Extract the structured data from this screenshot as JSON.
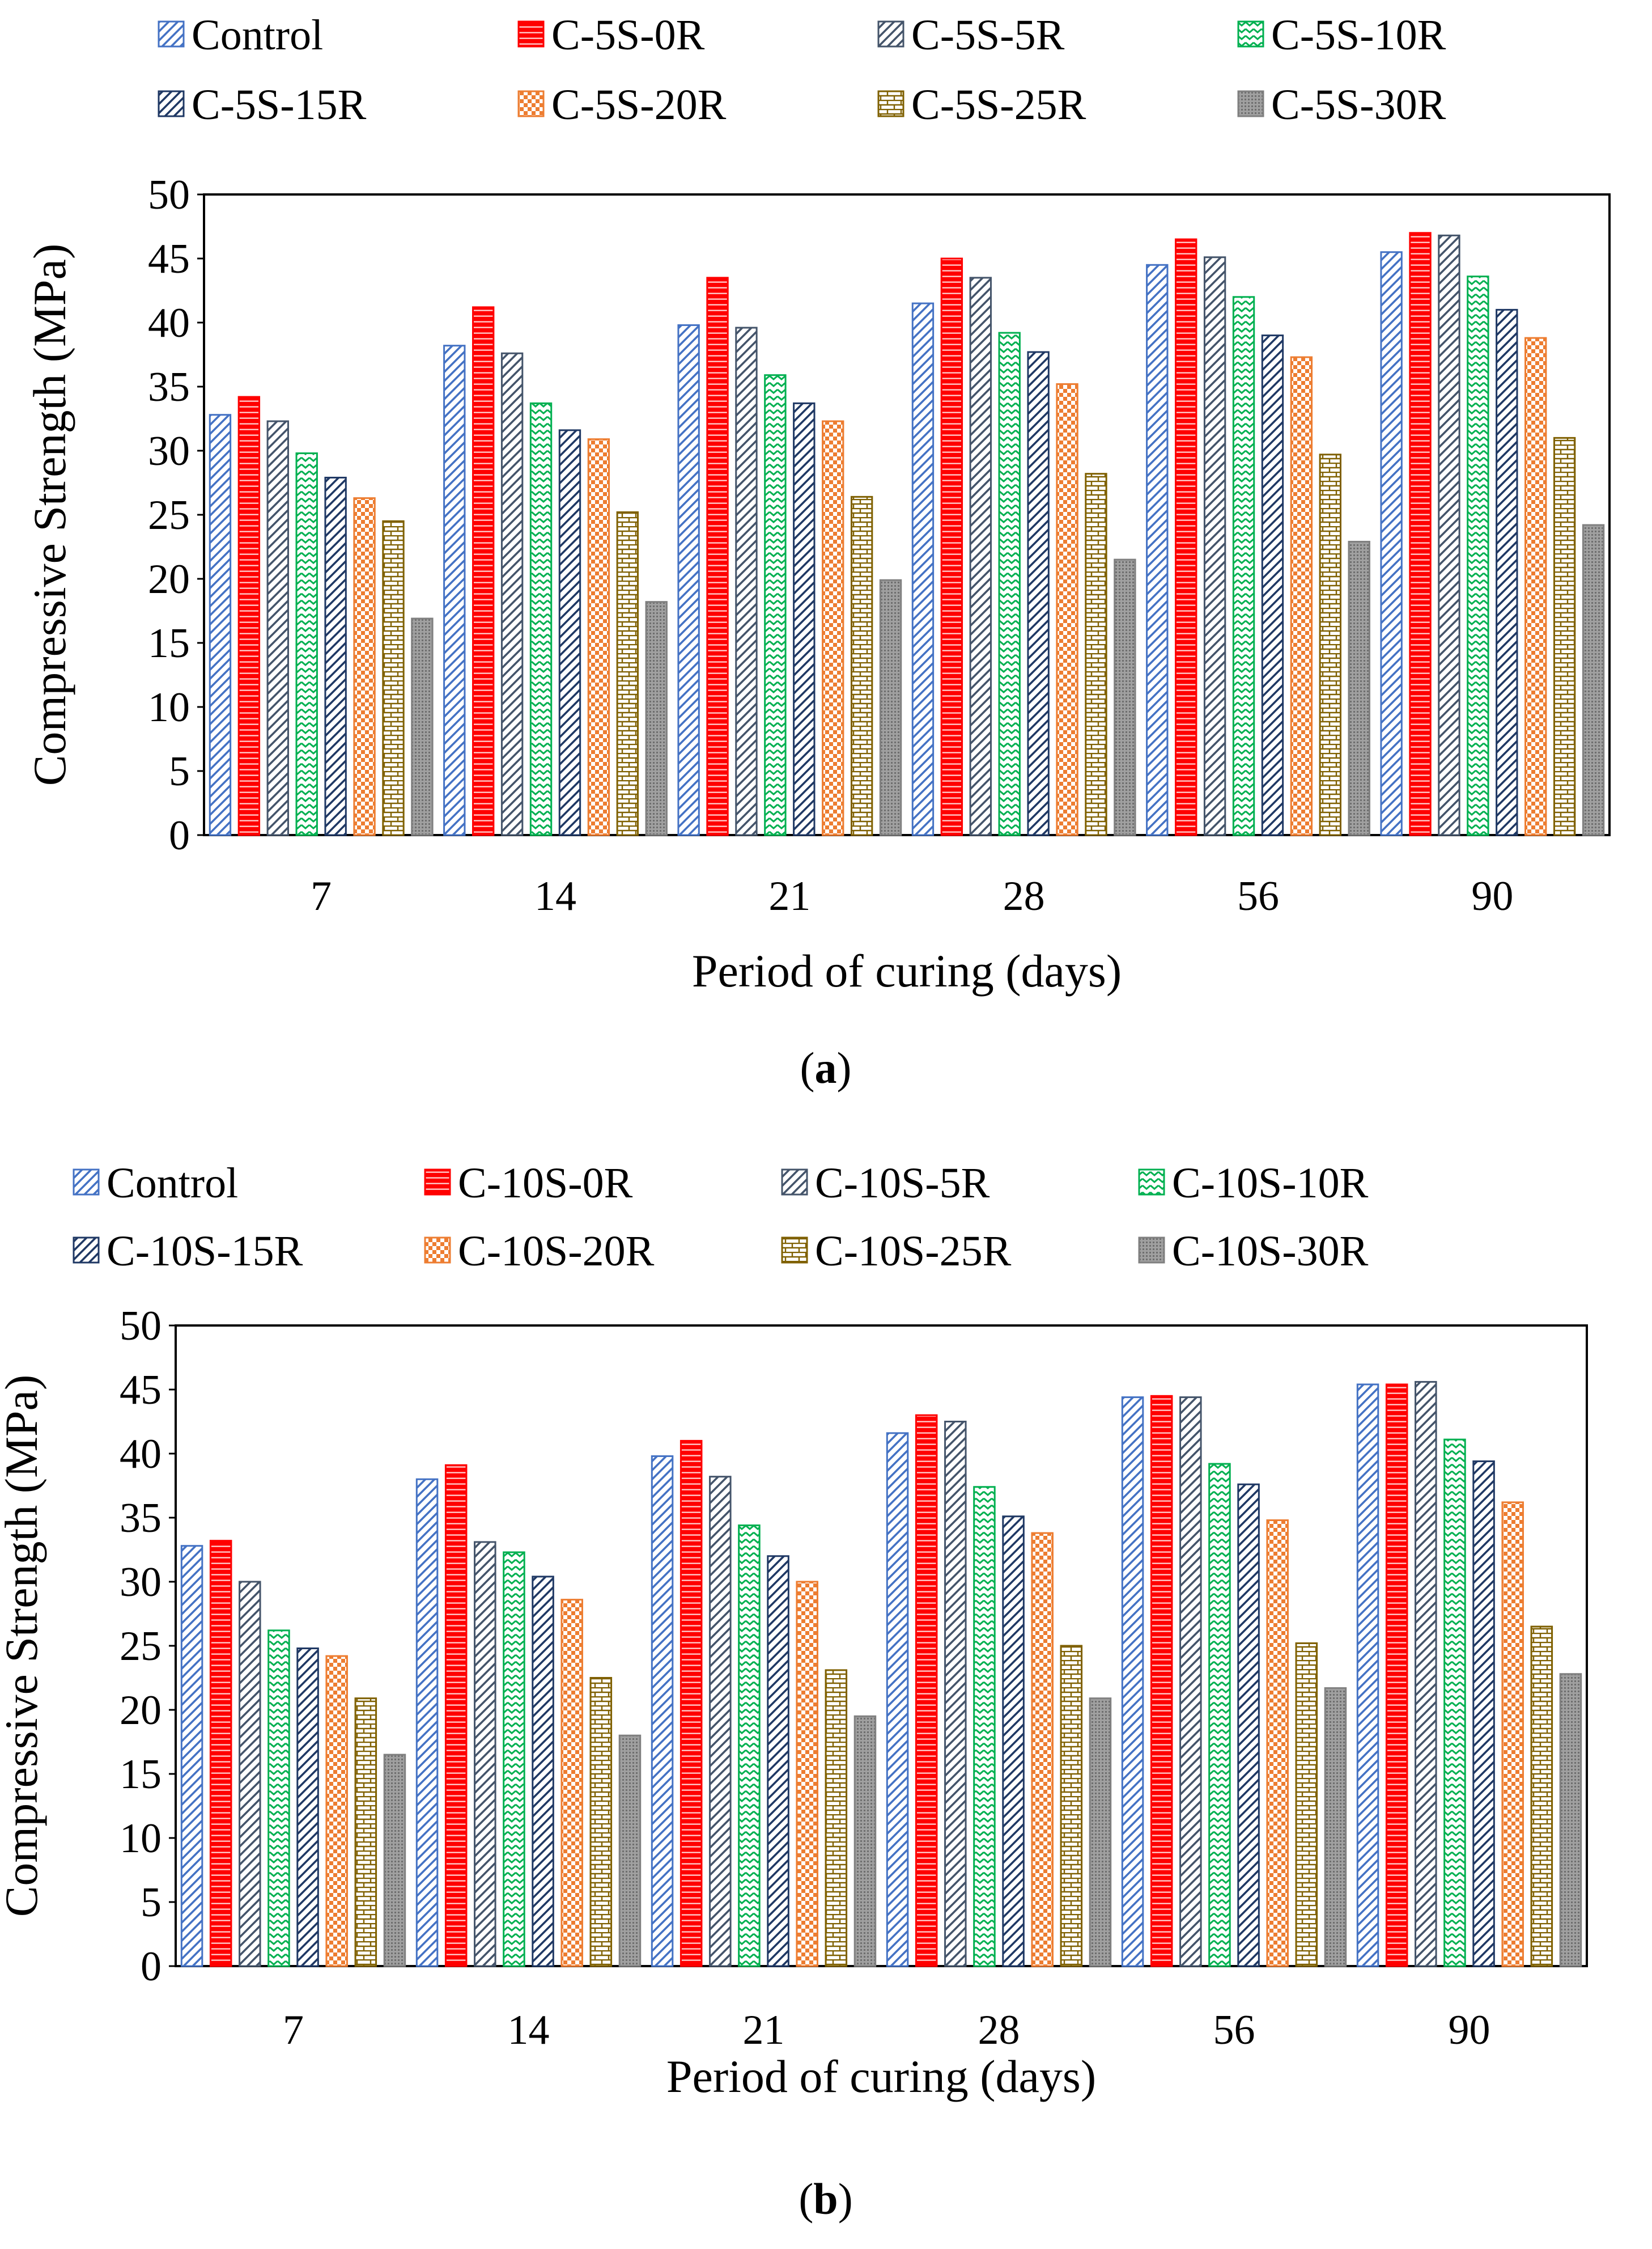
{
  "chart_data": [
    {
      "type": "bar",
      "panel_label": "(a)",
      "xlabel": "Period of curing (days)",
      "ylabel": "Compressive Strength (MPa)",
      "ylim": [
        0,
        50
      ],
      "yticks": [
        "0",
        "5",
        "10",
        "15",
        "20",
        "25",
        "30",
        "35",
        "40",
        "45",
        "50"
      ],
      "legend_position": "top",
      "categories": [
        "7",
        "14",
        "21",
        "28",
        "56",
        "90"
      ],
      "series": [
        {
          "name": "Control",
          "values": [
            32.8,
            38.2,
            39.8,
            41.5,
            44.5,
            45.5
          ]
        },
        {
          "name": "C-5S-0R",
          "values": [
            34.2,
            41.2,
            43.5,
            45.0,
            46.5,
            47.0
          ]
        },
        {
          "name": "C-5S-5R",
          "values": [
            32.3,
            37.6,
            39.6,
            43.5,
            45.1,
            46.8
          ]
        },
        {
          "name": "C-5S-10R",
          "values": [
            29.8,
            33.7,
            35.9,
            39.2,
            42.0,
            43.6
          ]
        },
        {
          "name": "C-5S-15R",
          "values": [
            27.9,
            31.6,
            33.7,
            37.7,
            39.0,
            41.0
          ]
        },
        {
          "name": "C-5S-20R",
          "values": [
            26.3,
            30.9,
            32.3,
            35.2,
            37.3,
            38.8
          ]
        },
        {
          "name": "C-5S-25R",
          "values": [
            24.5,
            25.2,
            26.4,
            28.2,
            29.7,
            31.0
          ]
        },
        {
          "name": "C-5S-30R",
          "values": [
            16.9,
            18.2,
            19.9,
            21.5,
            22.9,
            24.2
          ]
        }
      ]
    },
    {
      "type": "bar",
      "panel_label": "(b)",
      "xlabel": "Period of curing (days)",
      "ylabel": "Compressive Strength (MPa)",
      "ylim": [
        0,
        50
      ],
      "yticks": [
        "0",
        "5",
        "10",
        "15",
        "20",
        "25",
        "30",
        "35",
        "40",
        "45",
        "50"
      ],
      "legend_position": "top",
      "categories": [
        "7",
        "14",
        "21",
        "28",
        "56",
        "90"
      ],
      "series": [
        {
          "name": "Control",
          "values": [
            32.8,
            38.0,
            39.8,
            41.6,
            44.4,
            45.4
          ]
        },
        {
          "name": "C-10S-0R",
          "values": [
            33.2,
            39.1,
            41.0,
            43.0,
            44.5,
            45.4
          ]
        },
        {
          "name": "C-10S-5R",
          "values": [
            30.0,
            33.1,
            38.2,
            42.5,
            44.4,
            45.6
          ]
        },
        {
          "name": "C-10S-10R",
          "values": [
            26.2,
            32.3,
            34.4,
            37.4,
            39.2,
            41.1
          ]
        },
        {
          "name": "C-10S-15R",
          "values": [
            24.8,
            30.4,
            32.0,
            35.1,
            37.6,
            39.4
          ]
        },
        {
          "name": "C-10S-20R",
          "values": [
            24.2,
            28.6,
            30.0,
            33.8,
            34.8,
            36.2
          ]
        },
        {
          "name": "C-10S-25R",
          "values": [
            20.9,
            22.5,
            23.1,
            25.0,
            25.2,
            26.5
          ]
        },
        {
          "name": "C-10S-30R",
          "values": [
            16.5,
            18.0,
            19.5,
            20.9,
            21.7,
            22.8
          ]
        }
      ]
    }
  ],
  "series_styles": [
    {
      "pattern": "diag",
      "color": "#4472c4"
    },
    {
      "pattern": "hlines",
      "color": "#ff0000"
    },
    {
      "pattern": "diag",
      "color": "#44546a"
    },
    {
      "pattern": "zigzag",
      "color": "#00b050"
    },
    {
      "pattern": "diag",
      "color": "#1f3864"
    },
    {
      "pattern": "checker",
      "color": "#ed7d31"
    },
    {
      "pattern": "brick",
      "color": "#7f6000"
    },
    {
      "pattern": "dots",
      "color": "#808080"
    }
  ]
}
